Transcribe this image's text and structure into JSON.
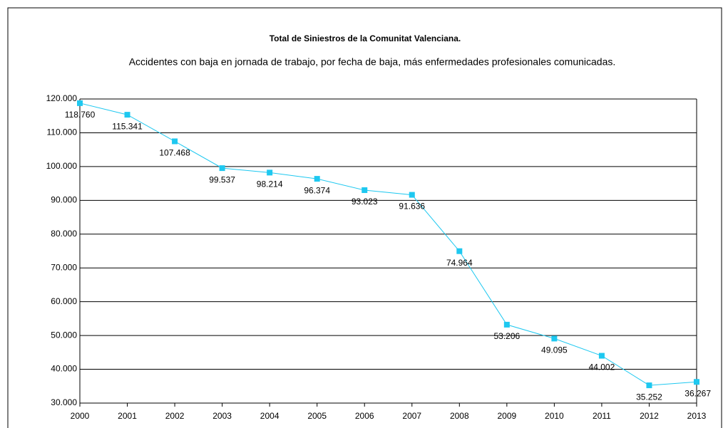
{
  "chart_data": {
    "type": "line",
    "title": "Total de Siniestros de la Comunitat Valenciana.",
    "subtitle": "Accidentes con baja en jornada de trabajo, por fecha de baja, más enfermedades profesionales comunicadas.",
    "categories": [
      "2000",
      "2001",
      "2002",
      "2003",
      "2004",
      "2005",
      "2006",
      "2007",
      "2008",
      "2009",
      "2010",
      "2011",
      "2012",
      "2013"
    ],
    "series": [
      {
        "name": "Total de Siniestros",
        "color": "#1ec8f0",
        "values": [
          118760,
          115341,
          107468,
          99537,
          98214,
          96374,
          93023,
          91636,
          74964,
          53206,
          49095,
          44002,
          35252,
          36267
        ],
        "value_labels": [
          "118.760",
          "115.341",
          "107.468",
          "99.537",
          "98.214",
          "96.374",
          "93.023",
          "91.636",
          "74.964",
          "53.206",
          "49.095",
          "44.002",
          "35.252",
          "36.267"
        ]
      }
    ],
    "ylim": [
      30000,
      120000
    ],
    "yticks": [
      {
        "value": 30000,
        "label": "30.000"
      },
      {
        "value": 40000,
        "label": "40.000"
      },
      {
        "value": 50000,
        "label": "50.000"
      },
      {
        "value": 60000,
        "label": "60.000"
      },
      {
        "value": 70000,
        "label": "70.000"
      },
      {
        "value": 80000,
        "label": "80.000"
      },
      {
        "value": 90000,
        "label": "90.000"
      },
      {
        "value": 100000,
        "label": "100.000"
      },
      {
        "value": 110000,
        "label": "110.000"
      },
      {
        "value": 120000,
        "label": "120.000"
      }
    ],
    "grid": true
  }
}
